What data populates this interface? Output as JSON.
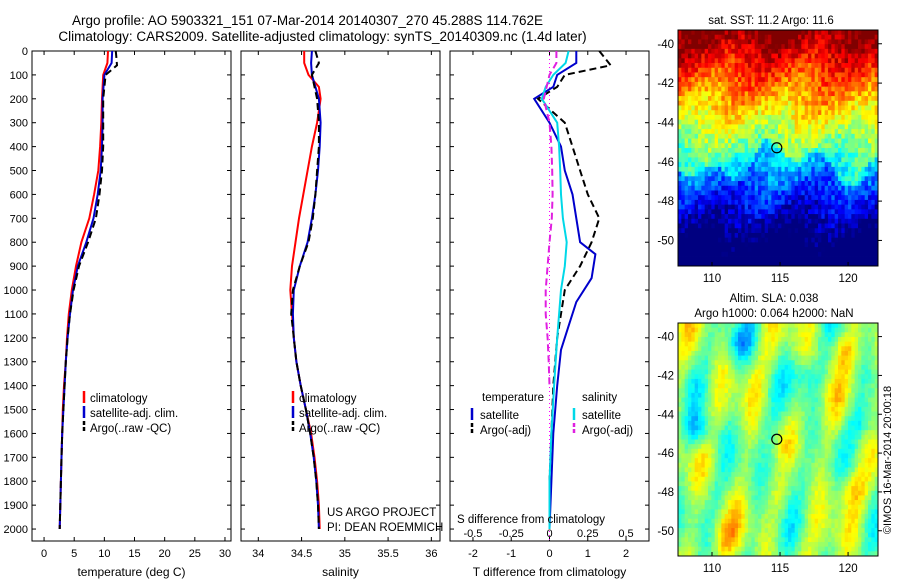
{
  "header": {
    "line1": "Argo profile: AO 5903321_151 07-Mar-2014 20140307_270 45.288S 114.762E",
    "line2": "Climatology: CARS2009. Satellite-adjusted climatology: synTS_20140309.nc (1.4d later)"
  },
  "colors": {
    "climatology": "#ff0000",
    "satellite": "#0000cc",
    "argo": "#000000",
    "sat_salinity": "#00d8e8",
    "argo_salinity": "#e020e0"
  },
  "chart_data": [
    {
      "type": "line",
      "panel": "temperature",
      "xlabel": "temperature (deg C)",
      "ylabel": "",
      "xlim": [
        -2,
        31
      ],
      "ylim": [
        2050,
        0
      ],
      "xticks": [
        0,
        5,
        10,
        15,
        20,
        25,
        30
      ],
      "yticks": [
        0,
        100,
        200,
        300,
        400,
        500,
        600,
        700,
        800,
        900,
        1000,
        1100,
        1200,
        1300,
        1400,
        1500,
        1600,
        1700,
        1800,
        1900,
        2000
      ],
      "legend": [
        "climatology",
        "satellite-adj. clim.",
        "Argo(..raw -QC)"
      ],
      "series": [
        {
          "name": "climatology",
          "color": "#ff0000",
          "style": "solid",
          "points": [
            [
              10.6,
              0
            ],
            [
              10.5,
              50
            ],
            [
              9.8,
              100
            ],
            [
              9.6,
              200
            ],
            [
              9.5,
              300
            ],
            [
              9.3,
              400
            ],
            [
              9.0,
              500
            ],
            [
              8.3,
              600
            ],
            [
              7.5,
              700
            ],
            [
              6.2,
              800
            ],
            [
              5.3,
              900
            ],
            [
              4.6,
              1000
            ],
            [
              4.1,
              1100
            ],
            [
              3.8,
              1200
            ],
            [
              3.6,
              1300
            ],
            [
              3.3,
              1400
            ],
            [
              3.1,
              1500
            ],
            [
              3.0,
              1600
            ],
            [
              2.9,
              1700
            ],
            [
              2.8,
              1800
            ],
            [
              2.7,
              1900
            ],
            [
              2.6,
              2000
            ]
          ]
        },
        {
          "name": "satellite-adj. clim.",
          "color": "#0000cc",
          "style": "solid",
          "points": [
            [
              11.3,
              0
            ],
            [
              11.2,
              50
            ],
            [
              10.0,
              100
            ],
            [
              9.7,
              200
            ],
            [
              9.7,
              300
            ],
            [
              9.6,
              400
            ],
            [
              9.4,
              500
            ],
            [
              8.9,
              600
            ],
            [
              8.2,
              700
            ],
            [
              7.0,
              800
            ],
            [
              5.6,
              900
            ],
            [
              4.8,
              1000
            ],
            [
              4.3,
              1100
            ],
            [
              3.9,
              1200
            ],
            [
              3.6,
              1300
            ],
            [
              3.4,
              1400
            ],
            [
              3.2,
              1500
            ],
            [
              3.0,
              1600
            ],
            [
              2.9,
              1700
            ],
            [
              2.8,
              1800
            ],
            [
              2.7,
              1900
            ],
            [
              2.6,
              2000
            ]
          ]
        },
        {
          "name": "Argo(..raw -QC)",
          "color": "#000000",
          "style": "dashed",
          "points": [
            [
              11.9,
              0
            ],
            [
              12.1,
              60
            ],
            [
              10.2,
              100
            ],
            [
              9.8,
              200
            ],
            [
              9.8,
              300
            ],
            [
              9.8,
              400
            ],
            [
              9.6,
              500
            ],
            [
              9.2,
              600
            ],
            [
              8.6,
              700
            ],
            [
              7.3,
              800
            ],
            [
              5.8,
              900
            ],
            [
              4.9,
              1000
            ],
            [
              4.3,
              1100
            ],
            [
              3.9,
              1200
            ],
            [
              3.6,
              1300
            ],
            [
              3.4,
              1400
            ],
            [
              3.2,
              1500
            ],
            [
              3.0,
              1600
            ],
            [
              2.9,
              1700
            ],
            [
              2.8,
              1800
            ],
            [
              2.7,
              1900
            ],
            [
              2.6,
              2000
            ]
          ]
        }
      ]
    },
    {
      "type": "line",
      "panel": "salinity",
      "xlabel": "salinity",
      "xlim": [
        33.8,
        36.1
      ],
      "ylim": [
        2050,
        0
      ],
      "xticks": [
        34,
        34.5,
        35,
        35.5,
        36
      ],
      "legend": [
        "climatology",
        "satellite-adj. clim.",
        "Argo(..raw -QC)"
      ],
      "series": [
        {
          "name": "climatology",
          "color": "#ff0000",
          "style": "solid",
          "points": [
            [
              34.53,
              0
            ],
            [
              34.53,
              50
            ],
            [
              34.58,
              100
            ],
            [
              34.7,
              150
            ],
            [
              34.72,
              200
            ],
            [
              34.7,
              250
            ],
            [
              34.68,
              300
            ],
            [
              34.62,
              400
            ],
            [
              34.57,
              500
            ],
            [
              34.52,
              600
            ],
            [
              34.47,
              700
            ],
            [
              34.43,
              800
            ],
            [
              34.39,
              900
            ],
            [
              34.37,
              1000
            ],
            [
              34.39,
              1100
            ],
            [
              34.41,
              1200
            ],
            [
              34.44,
              1300
            ],
            [
              34.49,
              1400
            ],
            [
              34.55,
              1500
            ],
            [
              34.61,
              1600
            ],
            [
              34.65,
              1700
            ],
            [
              34.68,
              1800
            ],
            [
              34.7,
              1900
            ],
            [
              34.71,
              2000
            ]
          ]
        },
        {
          "name": "satellite-adj. clim.",
          "color": "#0000cc",
          "style": "solid",
          "points": [
            [
              34.62,
              0
            ],
            [
              34.61,
              50
            ],
            [
              34.62,
              100
            ],
            [
              34.7,
              200
            ],
            [
              34.72,
              300
            ],
            [
              34.71,
              400
            ],
            [
              34.69,
              500
            ],
            [
              34.66,
              600
            ],
            [
              34.62,
              700
            ],
            [
              34.57,
              800
            ],
            [
              34.48,
              900
            ],
            [
              34.41,
              1000
            ],
            [
              34.4,
              1100
            ],
            [
              34.41,
              1200
            ],
            [
              34.44,
              1300
            ],
            [
              34.49,
              1400
            ],
            [
              34.55,
              1500
            ],
            [
              34.6,
              1600
            ],
            [
              34.64,
              1700
            ],
            [
              34.67,
              1800
            ],
            [
              34.69,
              1900
            ],
            [
              34.7,
              2000
            ]
          ]
        },
        {
          "name": "Argo(..raw -QC)",
          "color": "#000000",
          "style": "dashed",
          "points": [
            [
              34.66,
              0
            ],
            [
              34.7,
              50
            ],
            [
              34.62,
              100
            ],
            [
              34.68,
              200
            ],
            [
              34.7,
              300
            ],
            [
              34.7,
              400
            ],
            [
              34.68,
              500
            ],
            [
              34.66,
              600
            ],
            [
              34.63,
              700
            ],
            [
              34.58,
              800
            ],
            [
              34.48,
              900
            ],
            [
              34.4,
              1000
            ],
            [
              34.38,
              1100
            ],
            [
              34.41,
              1200
            ],
            [
              34.44,
              1300
            ],
            [
              34.49,
              1400
            ],
            [
              34.55,
              1500
            ],
            [
              34.6,
              1600
            ],
            [
              34.64,
              1700
            ],
            [
              34.67,
              1800
            ],
            [
              34.69,
              1900
            ],
            [
              34.7,
              2000
            ]
          ]
        }
      ],
      "annotation": [
        "US ARGO PROJECT",
        "PI: DEAN ROEMMICH"
      ]
    },
    {
      "type": "line",
      "panel": "difference",
      "xlabel": "T difference from climatology",
      "top_label": "S difference from climatology",
      "xlim": [
        -2.6,
        2.6
      ],
      "ylim": [
        2050,
        0
      ],
      "xticks": [
        -2,
        -1,
        0,
        1,
        2
      ],
      "top_ticks": [
        "-0.5",
        "-0.25",
        "0",
        "0.25",
        "0.5"
      ],
      "legend_headers": [
        "temperature",
        "salinity"
      ],
      "legend": [
        "satellite",
        "Argo(-adj)",
        "satellite",
        "Argo(-adj)"
      ],
      "series": [
        {
          "name": "temperature satellite",
          "color": "#0000cc",
          "style": "solid",
          "points": [
            [
              0.7,
              0
            ],
            [
              0.7,
              50
            ],
            [
              0.2,
              100
            ],
            [
              0.1,
              150
            ],
            [
              -0.4,
              200
            ],
            [
              0.0,
              300
            ],
            [
              0.3,
              400
            ],
            [
              0.4,
              500
            ],
            [
              0.6,
              600
            ],
            [
              0.7,
              700
            ],
            [
              0.8,
              800
            ],
            [
              1.2,
              850
            ],
            [
              1.1,
              950
            ],
            [
              0.7,
              1050
            ],
            [
              0.5,
              1150
            ],
            [
              0.3,
              1250
            ],
            [
              0.2,
              1400
            ],
            [
              0.1,
              1600
            ],
            [
              0.05,
              1800
            ],
            [
              0.0,
              2000
            ]
          ]
        },
        {
          "name": "temperature Argo(-adj)",
          "color": "#000000",
          "style": "dashed",
          "points": [
            [
              1.3,
              0
            ],
            [
              1.6,
              60
            ],
            [
              0.4,
              100
            ],
            [
              0.2,
              150
            ],
            [
              -0.3,
              200
            ],
            [
              0.4,
              300
            ],
            [
              0.6,
              400
            ],
            [
              0.8,
              500
            ],
            [
              1.0,
              600
            ],
            [
              1.3,
              700
            ],
            [
              1.1,
              800
            ],
            [
              0.8,
              900
            ],
            [
              0.4,
              1000
            ],
            [
              0.3,
              1100
            ],
            [
              0.2,
              1200
            ],
            [
              0.1,
              1400
            ],
            [
              0.05,
              1600
            ],
            [
              0.0,
              1800
            ],
            [
              0.0,
              2000
            ]
          ]
        },
        {
          "name": "salinity satellite",
          "color": "#00d8e8",
          "style": "solid",
          "points": [
            [
              0.5,
              0
            ],
            [
              0.42,
              50
            ],
            [
              0.1,
              100
            ],
            [
              -0.1,
              150
            ],
            [
              -0.2,
              200
            ],
            [
              0.2,
              300
            ],
            [
              0.25,
              400
            ],
            [
              0.28,
              500
            ],
            [
              0.3,
              600
            ],
            [
              0.35,
              700
            ],
            [
              0.45,
              800
            ],
            [
              0.4,
              900
            ],
            [
              0.3,
              1000
            ],
            [
              0.2,
              1200
            ],
            [
              0.12,
              1400
            ],
            [
              0.05,
              1600
            ],
            [
              0.0,
              1800
            ],
            [
              0.0,
              2000
            ]
          ]
        },
        {
          "name": "salinity Argo(-adj)",
          "color": "#e020e0",
          "style": "dashed",
          "points": [
            [
              0.18,
              0
            ],
            [
              0.18,
              50
            ],
            [
              0.0,
              100
            ],
            [
              -0.15,
              200
            ],
            [
              0.0,
              300
            ],
            [
              0.05,
              400
            ],
            [
              0.07,
              500
            ],
            [
              0.08,
              600
            ],
            [
              0.06,
              700
            ],
            [
              0.0,
              800
            ],
            [
              -0.05,
              900
            ],
            [
              -0.1,
              1000
            ],
            [
              -0.1,
              1100
            ],
            [
              -0.05,
              1200
            ],
            [
              -0.02,
              1300
            ],
            [
              0.0,
              1400
            ]
          ]
        }
      ]
    },
    {
      "type": "heatmap",
      "panel": "sst_map",
      "title": "sat. SST: 11.2 Argo: 11.6",
      "sat_sst": 11.2,
      "argo_sst": 11.6,
      "xlim": [
        107.5,
        122.2
      ],
      "ylim": [
        -51.3,
        -39.3
      ],
      "xticks": [
        110,
        115,
        120
      ],
      "yticks": [
        -40,
        -42,
        -44,
        -46,
        -48,
        -50
      ],
      "marker": {
        "lon": 114.762,
        "lat": -45.288
      }
    },
    {
      "type": "heatmap",
      "panel": "sla_map",
      "title_lines": [
        "Altim. SLA: 0.038",
        "Argo h1000: 0.064 h2000: NaN"
      ],
      "sla": 0.038,
      "h1000": 0.064,
      "h2000": "NaN",
      "xlim": [
        107.5,
        122.2
      ],
      "ylim": [
        -51.3,
        -39.3
      ],
      "xticks": [
        110,
        115,
        120
      ],
      "yticks": [
        -40,
        -42,
        -44,
        -46,
        -48,
        -50
      ],
      "marker": {
        "lon": 114.762,
        "lat": -45.288
      }
    }
  ],
  "footer": {
    "watermark": "©IMOS 16-Mar-2014 20:00:18"
  }
}
